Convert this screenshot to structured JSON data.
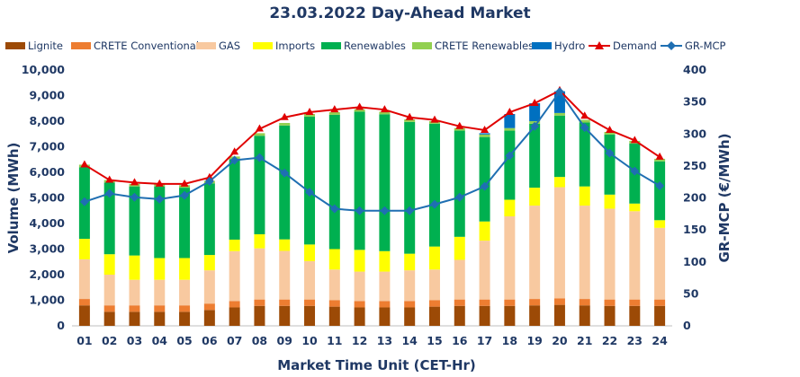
{
  "chart_data": {
    "type": "bar",
    "title": "23.03.2022  Day-Ahead Market",
    "xlabel": "Market Time Unit (CET-Hr)",
    "ylabel": "Volume (MWh)",
    "y2label": "GR-MCP (€/MWh)",
    "ylim": [
      0,
      10000
    ],
    "y2lim": [
      0,
      400
    ],
    "y_ticks": [
      "0",
      "1,000",
      "2,000",
      "3,000",
      "4,000",
      "5,000",
      "6,000",
      "7,000",
      "8,000",
      "9,000",
      "10,000"
    ],
    "y2_ticks": [
      "0",
      "50",
      "100",
      "150",
      "200",
      "250",
      "300",
      "350",
      "400"
    ],
    "categories": [
      "01",
      "02",
      "03",
      "04",
      "05",
      "06",
      "07",
      "08",
      "09",
      "10",
      "11",
      "12",
      "13",
      "14",
      "15",
      "16",
      "17",
      "18",
      "19",
      "20",
      "21",
      "22",
      "23",
      "24"
    ],
    "stacked_series": [
      {
        "name": "Lignite",
        "color": "#9c4a06",
        "values": [
          800,
          550,
          550,
          550,
          550,
          620,
          720,
          780,
          780,
          780,
          750,
          720,
          720,
          720,
          750,
          780,
          780,
          780,
          800,
          820,
          800,
          780,
          780,
          780
        ]
      },
      {
        "name": "CRETE Conventional",
        "color": "#ed7d31",
        "values": [
          250,
          250,
          250,
          250,
          250,
          250,
          250,
          250,
          250,
          250,
          250,
          250,
          250,
          250,
          250,
          250,
          250,
          250,
          250,
          250,
          250,
          250,
          250,
          250
        ]
      },
      {
        "name": "GAS",
        "color": "#f8c9a0",
        "values": [
          1550,
          1200,
          1000,
          1000,
          1000,
          1300,
          1950,
          2000,
          1900,
          1500,
          1200,
          1150,
          1150,
          1200,
          1200,
          1550,
          2300,
          3250,
          3650,
          4350,
          3650,
          3550,
          3450,
          2800
        ]
      },
      {
        "name": "Imports",
        "color": "#ffff00",
        "values": [
          800,
          800,
          950,
          850,
          850,
          600,
          450,
          550,
          450,
          650,
          800,
          850,
          800,
          650,
          900,
          900,
          750,
          650,
          700,
          400,
          750,
          550,
          300,
          300
        ]
      },
      {
        "name": "Renewables",
        "color": "#00b050",
        "values": [
          2800,
          2800,
          2700,
          2800,
          2750,
          2800,
          3150,
          3850,
          4450,
          5000,
          5250,
          5400,
          5350,
          5150,
          4800,
          4150,
          3300,
          2700,
          2500,
          2400,
          2500,
          2350,
          2350,
          2300
        ]
      },
      {
        "name": "CRETE Renewables",
        "color": "#92d050",
        "values": [
          100,
          100,
          100,
          100,
          100,
          100,
          100,
          100,
          100,
          100,
          100,
          100,
          100,
          100,
          100,
          100,
          100,
          100,
          100,
          100,
          100,
          100,
          100,
          100
        ]
      },
      {
        "name": "Hydro",
        "color": "#0070c0",
        "values": [
          0,
          0,
          0,
          0,
          0,
          0,
          0,
          0,
          0,
          0,
          0,
          0,
          0,
          0,
          0,
          0,
          50,
          550,
          700,
          850,
          0,
          0,
          0,
          0
        ]
      }
    ],
    "line_series": [
      {
        "name": "Demand",
        "axis": "left",
        "color": "#e00000",
        "marker": "triangle",
        "values": [
          6300,
          5700,
          5600,
          5550,
          5550,
          5800,
          6800,
          7700,
          8150,
          8350,
          8450,
          8550,
          8450,
          8150,
          8050,
          7800,
          7650,
          8350,
          8700,
          9200,
          8200,
          7650,
          7250,
          6600
        ]
      },
      {
        "name": "GR-MCP",
        "axis": "right",
        "color": "#1f6fb2",
        "marker": "diamond",
        "values": [
          194,
          207,
          201,
          198,
          204,
          226,
          259,
          263,
          239,
          209,
          183,
          180,
          180,
          180,
          190,
          201,
          218,
          266,
          312,
          366,
          310,
          270,
          242,
          219
        ]
      }
    ],
    "legend": {
      "position": "top"
    },
    "grid": false
  }
}
